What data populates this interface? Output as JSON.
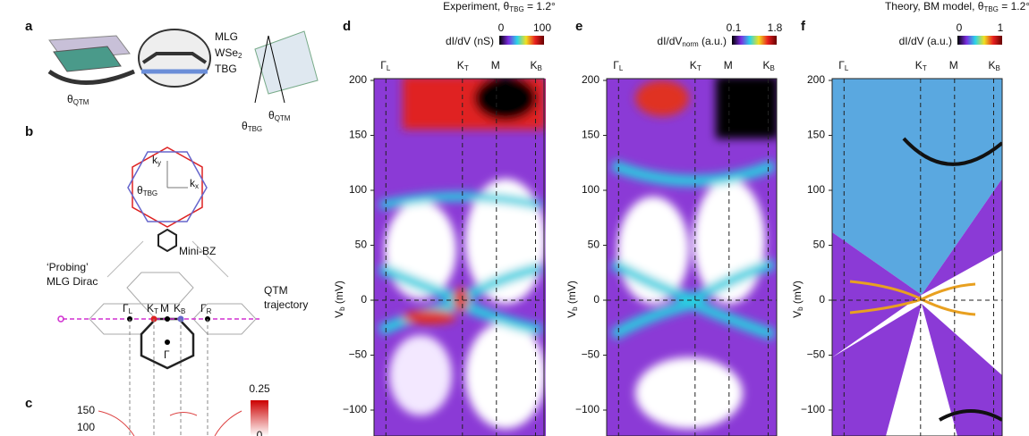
{
  "panel_a": {
    "label": "a",
    "mlg": "MLG",
    "wse2": {
      "main": "WSe",
      "sub": "2"
    },
    "tbg": "TBG",
    "theta_qtm": {
      "main": "θ",
      "sub": "QTM"
    },
    "theta_tbg": {
      "main": "θ",
      "sub": "TBG"
    },
    "theta_qtm_2": {
      "main": "θ",
      "sub": "QTM"
    }
  },
  "panel_b": {
    "label": "b",
    "ky": {
      "main": "k",
      "sub": "y"
    },
    "kx": {
      "main": "k",
      "sub": "x"
    },
    "theta_tbg": {
      "main": "θ",
      "sub": "TBG"
    },
    "mini_bz": "Mini-BZ",
    "probing": [
      "‘Probing’",
      "MLG Dirac"
    ],
    "trajectory": [
      "QTM",
      "trajectory"
    ],
    "points": [
      {
        "main": "Γ",
        "sub": "L"
      },
      {
        "main": "K",
        "sub": "T"
      },
      "M",
      {
        "main": "K",
        "sub": "B"
      },
      {
        "main": "Γ",
        "sub": "R"
      }
    ],
    "gamma": "Γ"
  },
  "panel_c": {
    "label": "c",
    "y_ticks": [
      "150",
      "100"
    ],
    "colorbar_ticks": [
      "0.25",
      "0"
    ]
  },
  "plots": [
    {
      "label": "d",
      "title": {
        "pre": "Experiment, θ",
        "sub": "TBG",
        "post": " = 1.2°"
      },
      "colorbar_label": "dI/dV (nS)",
      "colorbar_ticks": [
        "0",
        "100"
      ],
      "x_labels": [
        {
          "main": "Γ",
          "sub": "L"
        },
        {
          "main": "K",
          "sub": "T"
        },
        "M",
        {
          "main": "K",
          "sub": "B"
        }
      ],
      "y_label": {
        "main": "V",
        "sub": "b",
        "post": " (mV)"
      },
      "y_ticks": [
        "200",
        "150",
        "100",
        "50",
        "0",
        "−50",
        "−100"
      ]
    },
    {
      "label": "e",
      "colorbar_label": {
        "pre": "dI/dV",
        "sub": "norm",
        "post": " (a.u.)"
      },
      "colorbar_ticks": [
        "0.1",
        "1.8"
      ],
      "x_labels": [
        {
          "main": "Γ",
          "sub": "L"
        },
        {
          "main": "K",
          "sub": "T"
        },
        "M",
        {
          "main": "K",
          "sub": "B"
        }
      ],
      "y_label": {
        "main": "V",
        "sub": "b",
        "post": " (mV)"
      },
      "y_ticks": [
        "200",
        "150",
        "100",
        "50",
        "0",
        "−50",
        "−100"
      ]
    },
    {
      "label": "f",
      "title": {
        "pre": "Theory, BM model, θ",
        "sub": "TBG",
        "post": " = 1.2°"
      },
      "colorbar_label": "dI/dV (a.u.)",
      "colorbar_ticks": [
        "0",
        "1"
      ],
      "x_labels": [
        {
          "main": "Γ",
          "sub": "L"
        },
        {
          "main": "K",
          "sub": "T"
        },
        "M",
        {
          "main": "K",
          "sub": "B"
        }
      ],
      "y_label": {
        "main": "V",
        "sub": "b",
        "post": " (mV)"
      },
      "y_ticks": [
        "200",
        "150",
        "100",
        "50",
        "0",
        "−50",
        "−100"
      ]
    }
  ]
}
